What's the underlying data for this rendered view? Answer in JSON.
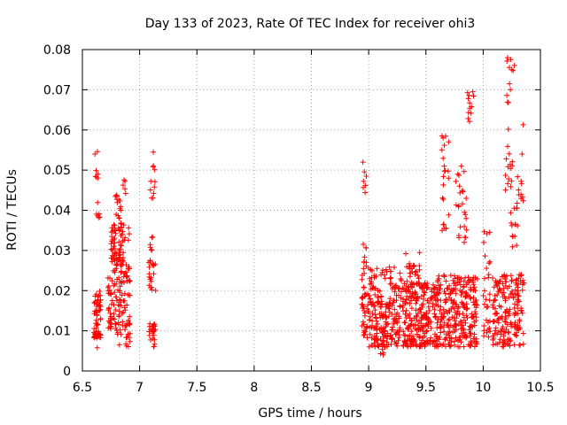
{
  "chart_data": {
    "type": "scatter",
    "title": "Day 133 of 2023, Rate Of TEC Index for receiver ohi3",
    "xlabel": "GPS time / hours",
    "ylabel": "ROTI / TECUs",
    "xlim": [
      6.5,
      10.5
    ],
    "ylim": [
      0,
      0.08
    ],
    "x_ticks": [
      "6.5",
      "7",
      "7.5",
      "8",
      "8.5",
      "9",
      "9.5",
      "10",
      "10.5"
    ],
    "y_ticks": [
      "0",
      "0.01",
      "0.02",
      "0.03",
      "0.04",
      "0.05",
      "0.06",
      "0.07",
      "0.08"
    ],
    "grid": true,
    "legend": "none",
    "marker": "+",
    "color": "#ff0000",
    "point_spec": "Each group: [x_start, x_end, y_base, y_spread, count, seed]; points are expanded by script into (x, y) in data units (hours, TECU/min). Additional explicit points listed in 'points'.",
    "clusters": [
      [
        6.6,
        6.66,
        0.008,
        0.012,
        60,
        1
      ],
      [
        6.61,
        6.64,
        0.048,
        0.007,
        6,
        2
      ],
      [
        6.62,
        6.66,
        0.037,
        0.005,
        6,
        3
      ],
      [
        6.72,
        6.8,
        0.01,
        0.015,
        45,
        4
      ],
      [
        6.75,
        6.86,
        0.025,
        0.012,
        70,
        5
      ],
      [
        6.8,
        6.92,
        0.006,
        0.022,
        80,
        6
      ],
      [
        6.78,
        6.84,
        0.038,
        0.006,
        14,
        7
      ],
      [
        6.84,
        6.88,
        0.044,
        0.004,
        5,
        8
      ],
      [
        6.86,
        6.92,
        0.032,
        0.005,
        6,
        9
      ],
      [
        7.08,
        7.14,
        0.006,
        0.006,
        25,
        10
      ],
      [
        7.08,
        7.14,
        0.02,
        0.008,
        20,
        11
      ],
      [
        7.09,
        7.13,
        0.03,
        0.004,
        6,
        12
      ],
      [
        7.09,
        7.14,
        0.043,
        0.009,
        10,
        13
      ],
      [
        8.94,
        9.0,
        0.008,
        0.025,
        45,
        14
      ],
      [
        8.95,
        8.99,
        0.044,
        0.006,
        6,
        15
      ],
      [
        9.0,
        9.3,
        0.006,
        0.02,
        220,
        16
      ],
      [
        9.05,
        9.15,
        0.004,
        0.004,
        8,
        17
      ],
      [
        9.3,
        9.6,
        0.006,
        0.016,
        240,
        18
      ],
      [
        9.32,
        9.45,
        0.018,
        0.012,
        40,
        19
      ],
      [
        9.6,
        9.95,
        0.006,
        0.018,
        260,
        20
      ],
      [
        9.63,
        9.7,
        0.034,
        0.025,
        20,
        21
      ],
      [
        9.76,
        9.86,
        0.032,
        0.018,
        24,
        22
      ],
      [
        9.86,
        9.92,
        0.062,
        0.008,
        10,
        23
      ],
      [
        10.0,
        10.06,
        0.008,
        0.028,
        30,
        24
      ],
      [
        10.08,
        10.36,
        0.006,
        0.018,
        180,
        25
      ],
      [
        10.18,
        10.26,
        0.044,
        0.012,
        14,
        26
      ],
      [
        10.24,
        10.3,
        0.03,
        0.012,
        14,
        27
      ],
      [
        10.28,
        10.36,
        0.038,
        0.012,
        10,
        28
      ],
      [
        10.2,
        10.28,
        0.06,
        0.018,
        10,
        29
      ]
    ],
    "points": [
      [
        6.61,
        0.054
      ],
      [
        7.12,
        0.0545
      ],
      [
        8.95,
        0.052
      ],
      [
        10.24,
        0.0775
      ],
      [
        10.25,
        0.075
      ],
      [
        10.23,
        0.0715
      ],
      [
        10.35,
        0.0613
      ],
      [
        10.34,
        0.054
      ],
      [
        9.91,
        0.0695
      ],
      [
        9.87,
        0.0678
      ],
      [
        9.65,
        0.058
      ],
      [
        9.66,
        0.051
      ],
      [
        9.81,
        0.051
      ],
      [
        6.63,
        0.0058
      ],
      [
        9.13,
        0.0045
      ],
      [
        9.64,
        0.055
      ]
    ]
  }
}
